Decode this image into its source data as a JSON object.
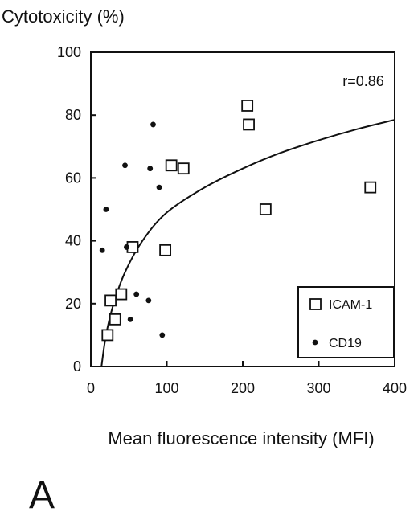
{
  "panel_label": "A",
  "chart_data": {
    "type": "scatter",
    "title": "",
    "ylabel": "Cytotoxicity (%)",
    "xlabel": "Mean fluorescence intensity (MFI)",
    "xlim": [
      0,
      400
    ],
    "ylim": [
      0,
      100
    ],
    "xticks": [
      "0",
      "100",
      "200",
      "300",
      "400"
    ],
    "yticks": [
      "0",
      "20",
      "40",
      "60",
      "80",
      "100"
    ],
    "grid": false,
    "legend_position": "bottom-right",
    "annotation": "r=0.86",
    "series": [
      {
        "name": "ICAM-1",
        "marker": "open-square",
        "points": [
          {
            "x": 22,
            "y": 10
          },
          {
            "x": 26,
            "y": 21
          },
          {
            "x": 32,
            "y": 15
          },
          {
            "x": 40,
            "y": 23
          },
          {
            "x": 55,
            "y": 38
          },
          {
            "x": 98,
            "y": 37
          },
          {
            "x": 106,
            "y": 64
          },
          {
            "x": 122,
            "y": 63
          },
          {
            "x": 206,
            "y": 83
          },
          {
            "x": 208,
            "y": 77
          },
          {
            "x": 230,
            "y": 50
          },
          {
            "x": 368,
            "y": 57
          }
        ]
      },
      {
        "name": "CD19",
        "marker": "filled-circle",
        "points": [
          {
            "x": 15,
            "y": 37
          },
          {
            "x": 20,
            "y": 50
          },
          {
            "x": 45,
            "y": 64
          },
          {
            "x": 47,
            "y": 38
          },
          {
            "x": 52,
            "y": 15
          },
          {
            "x": 60,
            "y": 23
          },
          {
            "x": 76,
            "y": 21
          },
          {
            "x": 78,
            "y": 63
          },
          {
            "x": 82,
            "y": 77
          },
          {
            "x": 90,
            "y": 57
          },
          {
            "x": 94,
            "y": 10
          }
        ]
      }
    ],
    "fit_curve": {
      "type": "log",
      "points": [
        {
          "x": 14,
          "y": 0
        },
        {
          "x": 20,
          "y": 10
        },
        {
          "x": 30,
          "y": 20
        },
        {
          "x": 45,
          "y": 30
        },
        {
          "x": 68,
          "y": 40
        },
        {
          "x": 100,
          "y": 49
        },
        {
          "x": 150,
          "y": 57
        },
        {
          "x": 200,
          "y": 63
        },
        {
          "x": 250,
          "y": 68
        },
        {
          "x": 300,
          "y": 72
        },
        {
          "x": 350,
          "y": 75.5
        },
        {
          "x": 400,
          "y": 78.5
        }
      ]
    }
  }
}
